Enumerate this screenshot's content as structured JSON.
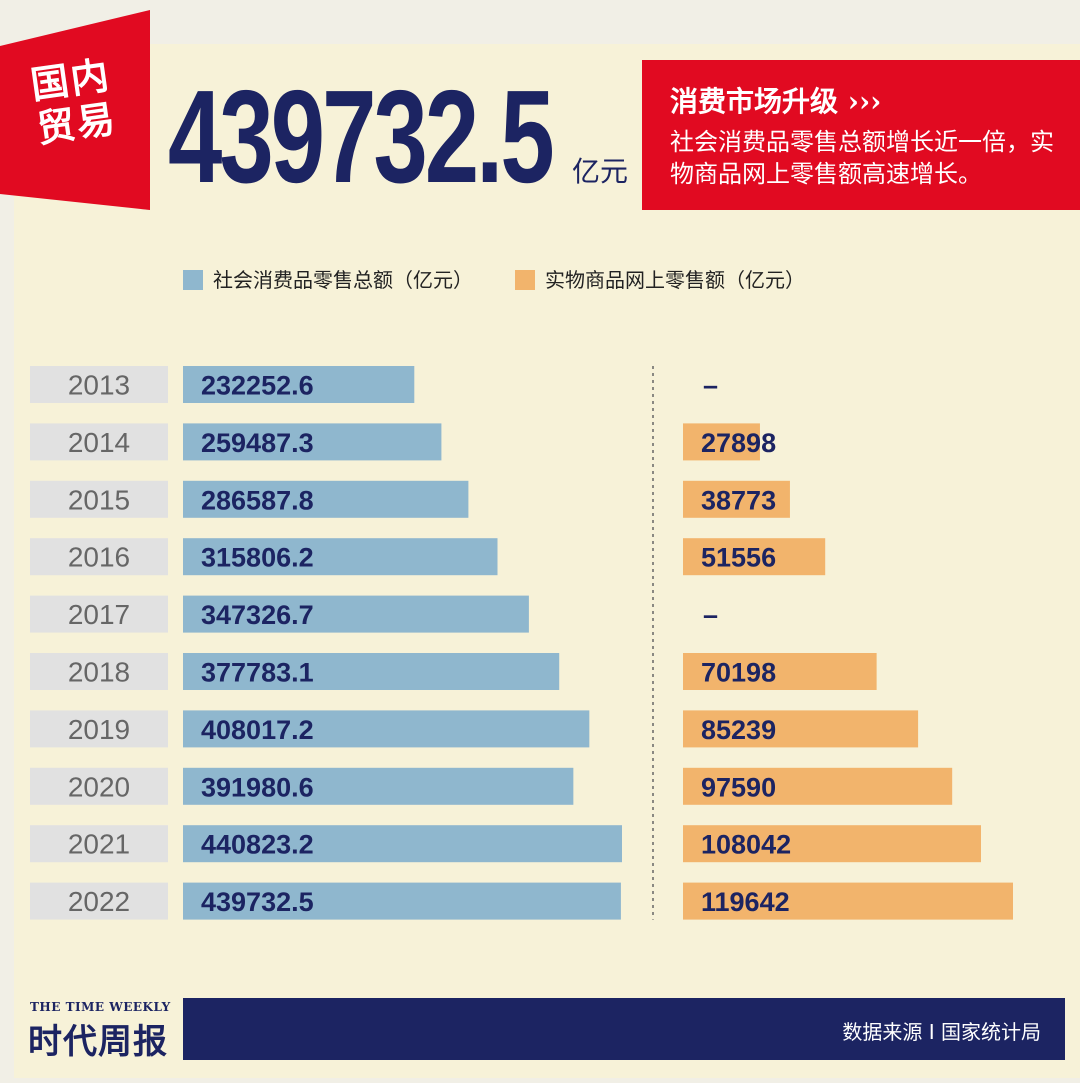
{
  "header": {
    "tag": "国内贸易",
    "headline_value": "439732.5",
    "headline_unit": "亿元",
    "highlight_title": "消费市场升级 ›››",
    "highlight_body": "社会消费品零售总额增长近一倍，实物商品网上零售额高速增长。"
  },
  "legend": {
    "retail": "社会消费品零售总额（亿元）",
    "online": "实物商品网上零售额（亿元）"
  },
  "footer": {
    "source": "数据来源 I 国家统计局",
    "brand_en": "THE TIME WEEKLY",
    "brand_cn": "时代周报"
  },
  "colors": {
    "retail": "#8fb7ce",
    "online": "#f2b46c",
    "label_navy": "#1c2462",
    "year_bg": "#e1e1e1",
    "year_text": "#666666",
    "red": "#e10a21"
  },
  "chart_data": {
    "type": "bar",
    "orientation": "horizontal",
    "categories": [
      "2013",
      "2014",
      "2015",
      "2016",
      "2017",
      "2018",
      "2019",
      "2020",
      "2021",
      "2022"
    ],
    "series": [
      {
        "name": "社会消费品零售总额（亿元）",
        "values": [
          232252.6,
          259487.3,
          286587.8,
          315806.2,
          347326.7,
          377783.1,
          408017.2,
          391980.6,
          440823.2,
          439732.5
        ],
        "labels": [
          "232252.6",
          "259487.3",
          "286587.8",
          "315806.2",
          "347326.7",
          "377783.1",
          "408017.2",
          "391980.6",
          "440823.2",
          "439732.5"
        ]
      },
      {
        "name": "实物商品网上零售额（亿元）",
        "values": [
          null,
          27898,
          38773,
          51556,
          null,
          70198,
          85239,
          97590,
          108042,
          119642
        ],
        "labels": [
          "–",
          "27898",
          "38773",
          "51556",
          "–",
          "70198",
          "85239",
          "97590",
          "108042",
          "119642"
        ]
      }
    ]
  }
}
